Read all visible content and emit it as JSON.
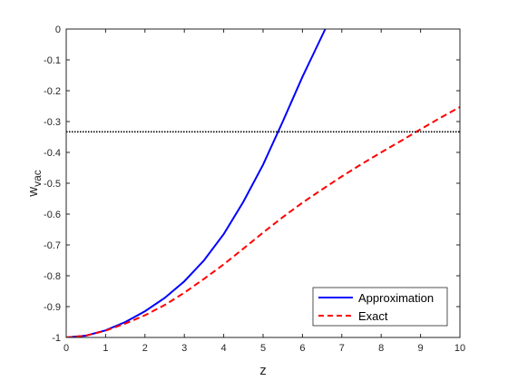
{
  "chart_data": {
    "type": "line",
    "title": "",
    "xlabel": "z",
    "ylabel": "w",
    "ylabel_subscript": "vac",
    "xlim": [
      0,
      10
    ],
    "ylim": [
      -1,
      0
    ],
    "xticks": [
      0,
      1,
      2,
      3,
      4,
      5,
      6,
      7,
      8,
      9,
      10
    ],
    "xtick_labels": [
      "0",
      "1",
      "2",
      "3",
      "4",
      "5",
      "6",
      "7",
      "8",
      "9",
      "10"
    ],
    "yticks": [
      -1,
      -0.9,
      -0.8,
      -0.7,
      -0.6,
      -0.5,
      -0.4,
      -0.3,
      -0.2,
      -0.1,
      0
    ],
    "ytick_labels": [
      "-1",
      "-0.9",
      "-0.8",
      "-0.7",
      "-0.6",
      "-0.5",
      "-0.4",
      "-0.3",
      "-0.2",
      "-0.1",
      "0"
    ],
    "grid": false,
    "legend_position": "bottom-right",
    "series": [
      {
        "name": "Approximation",
        "color": "#0000ff",
        "style": "solid",
        "x": [
          0,
          0.5,
          1,
          1.5,
          2,
          2.5,
          3,
          3.5,
          4,
          4.5,
          5,
          5.5,
          6,
          6.3,
          6.58
        ],
        "y": [
          -1,
          -0.994,
          -0.977,
          -0.95,
          -0.915,
          -0.872,
          -0.818,
          -0.75,
          -0.665,
          -0.56,
          -0.44,
          -0.3,
          -0.155,
          -0.075,
          0
        ]
      },
      {
        "name": "Exact",
        "color": "#ff0000",
        "style": "dashed",
        "x": [
          0,
          0.5,
          1,
          1.5,
          2,
          2.5,
          3,
          3.5,
          4,
          4.5,
          5,
          5.5,
          6,
          6.5,
          7,
          7.5,
          8,
          8.5,
          9,
          9.5,
          10
        ],
        "y": [
          -1,
          -0.994,
          -0.978,
          -0.955,
          -0.928,
          -0.895,
          -0.855,
          -0.81,
          -0.763,
          -0.712,
          -0.66,
          -0.61,
          -0.563,
          -0.52,
          -0.478,
          -0.438,
          -0.4,
          -0.363,
          -0.325,
          -0.288,
          -0.253
        ]
      }
    ],
    "reference_line": {
      "y": -0.3333,
      "color": "#000000",
      "style": "dotted"
    }
  }
}
